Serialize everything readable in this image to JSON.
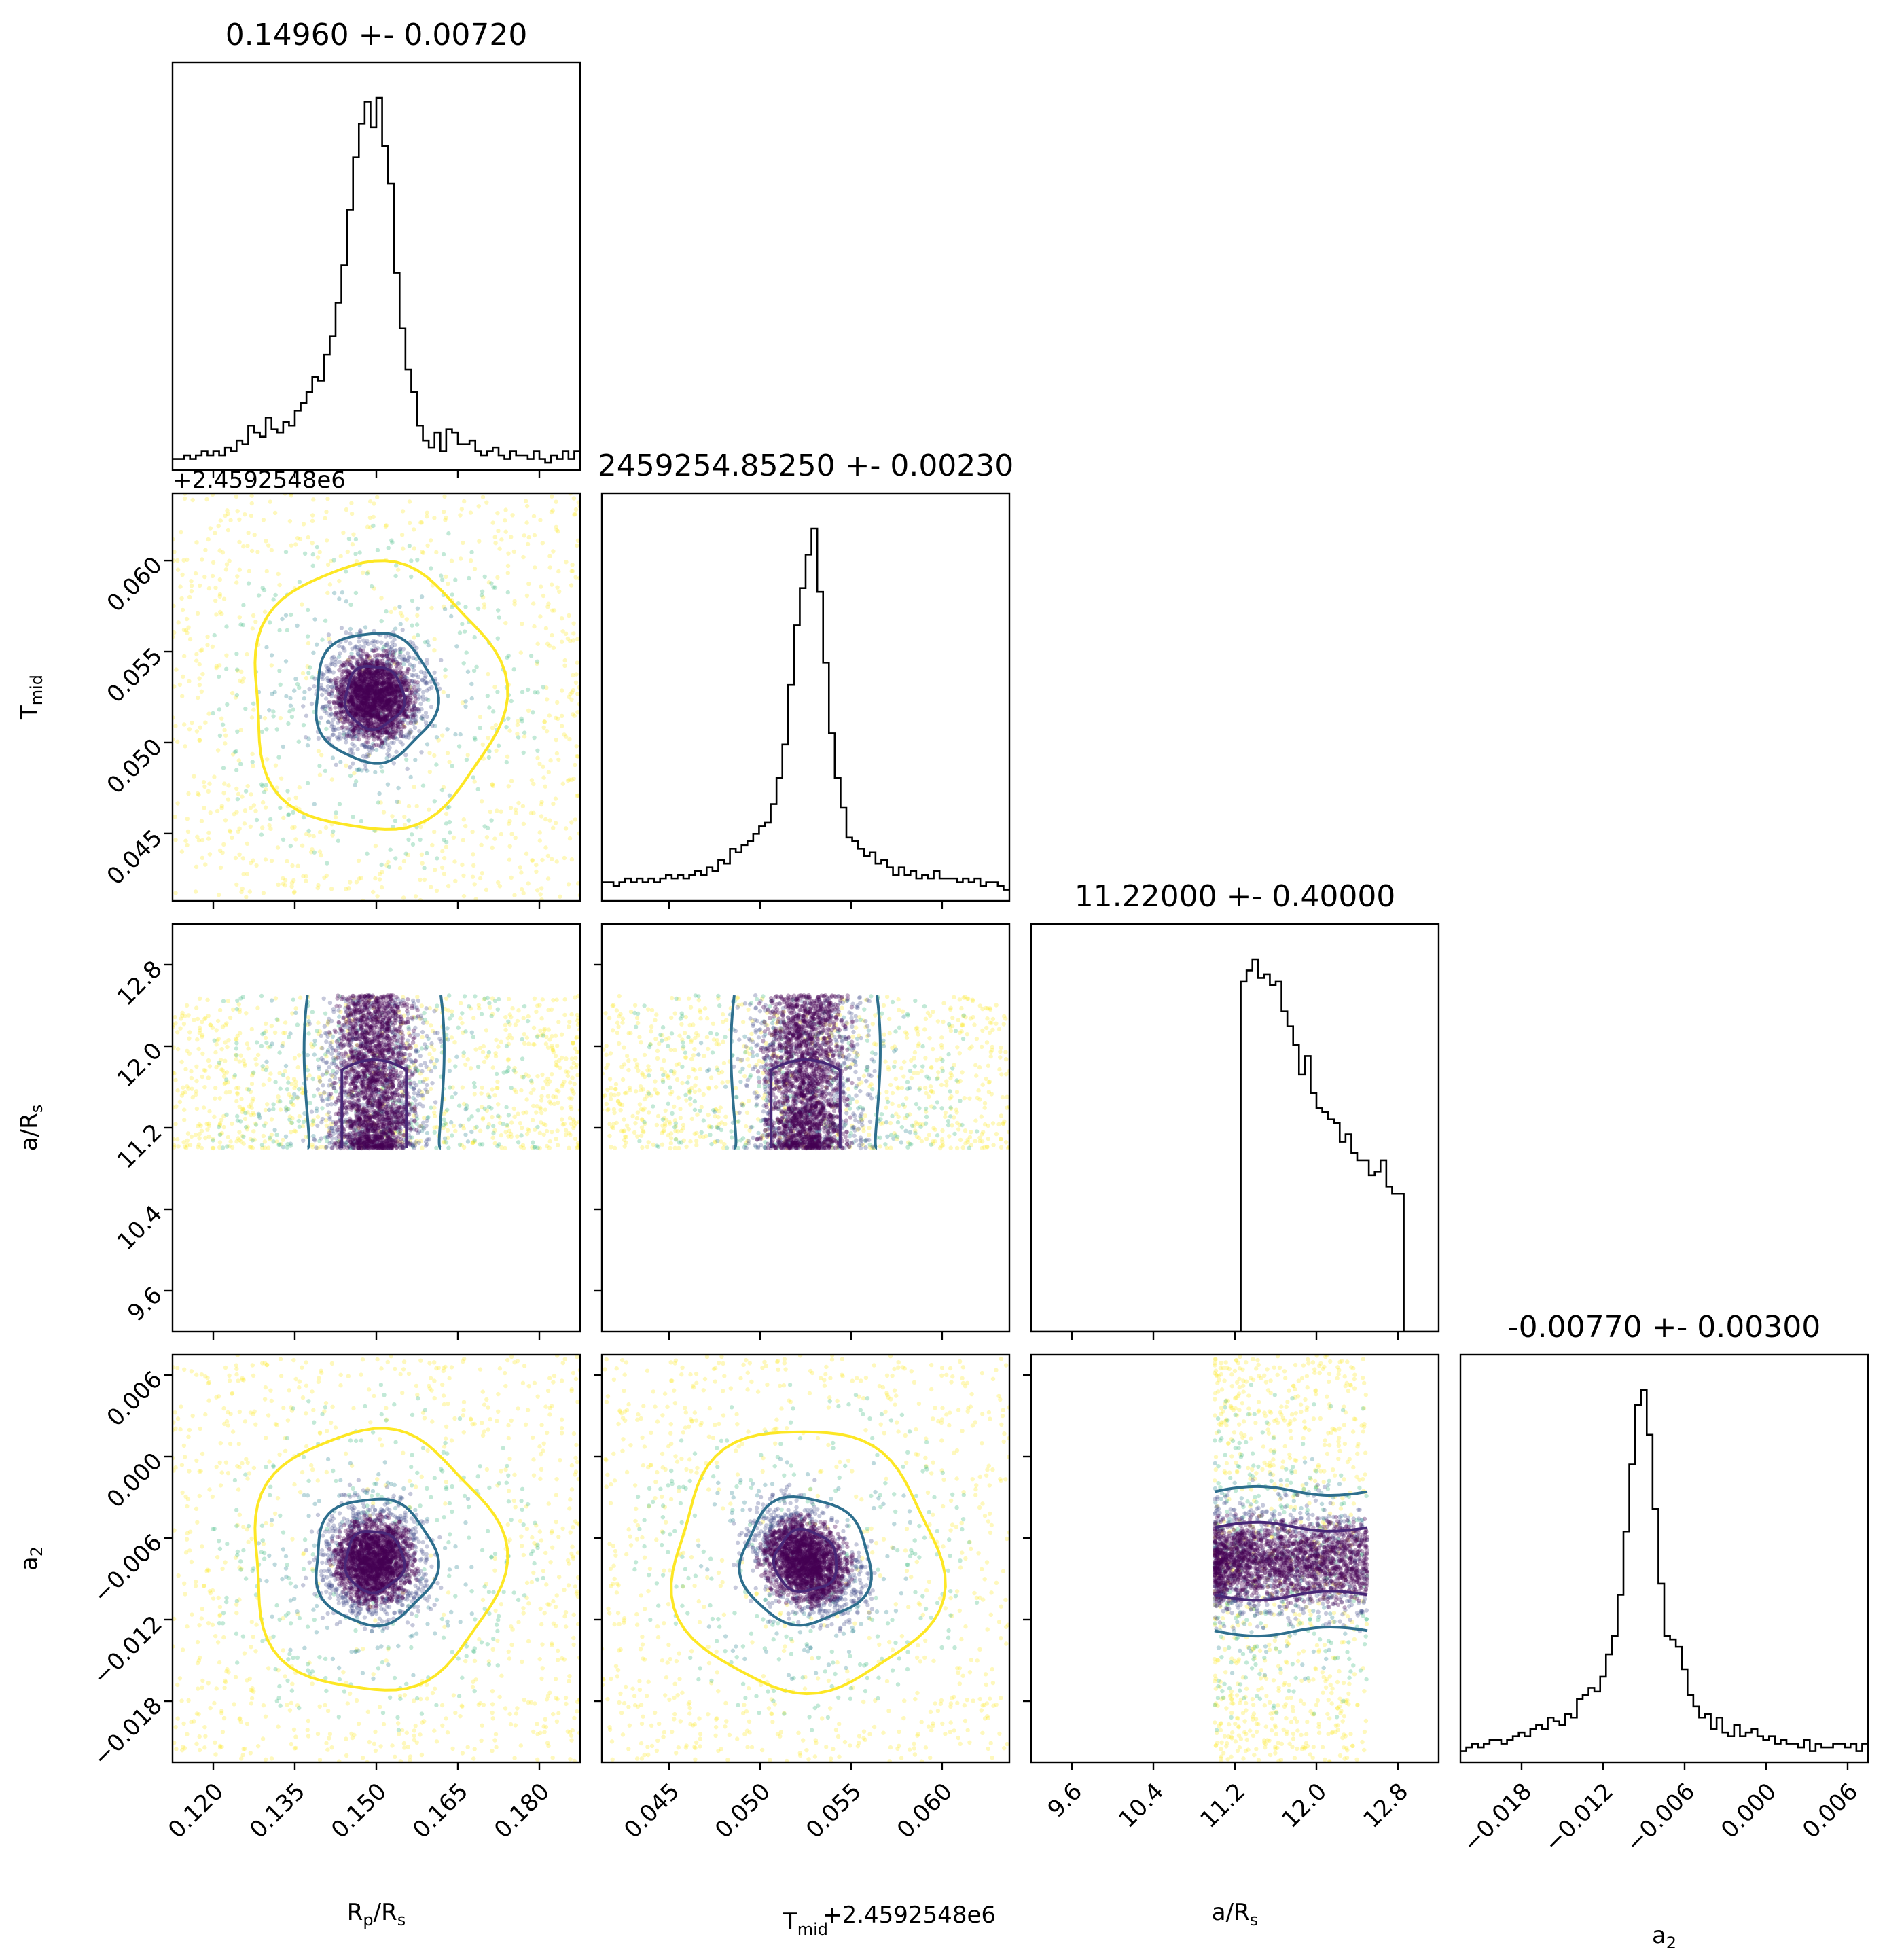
{
  "chart_data": {
    "type": "scatter",
    "layout": "corner-plot",
    "title": "",
    "parameters": [
      {
        "key": "rp",
        "label": "R",
        "label_sub": "p",
        "label_tail": "/R",
        "label_tail_sub": "s",
        "range": [
          0.1125,
          0.1875
        ],
        "ticks": [
          0.12,
          0.135,
          0.15,
          0.165,
          0.18
        ],
        "tick_labels": [
          "0.120",
          "0.135",
          "0.150",
          "0.165",
          "0.180"
        ],
        "mean": 0.1496,
        "std": 0.0072,
        "title": "0.14960 +- 0.00720",
        "offset": ""
      },
      {
        "key": "tmid",
        "label": "T",
        "label_sub": "mid",
        "label_tail": "",
        "label_tail_sub": "",
        "range": [
          0.0413,
          0.0637
        ],
        "ticks": [
          0.045,
          0.05,
          0.055,
          0.06
        ],
        "tick_labels": [
          "0.045",
          "0.050",
          "0.055",
          "0.060"
        ],
        "mean": 0.0525,
        "std": 0.0023,
        "title": "2459254.85250 +- 0.00230",
        "offset": "+2.4592548e6"
      },
      {
        "key": "ars",
        "label": "a/R",
        "label_sub": "s",
        "label_tail": "",
        "label_tail_sub": "",
        "range": [
          9.2,
          13.2
        ],
        "ticks": [
          9.6,
          10.4,
          11.2,
          12.0,
          12.8
        ],
        "tick_labels": [
          "9.6",
          "10.4",
          "11.2",
          "12.0",
          "12.8"
        ],
        "mean": 11.22,
        "std": 0.4,
        "title": "11.22000 +- 0.40000",
        "offset": "",
        "bounds": [
          11.0,
          12.5
        ]
      },
      {
        "key": "a2",
        "label": "a",
        "label_sub": "2",
        "label_tail": "",
        "label_tail_sub": "",
        "range": [
          -0.0225,
          0.0075
        ],
        "ticks": [
          -0.018,
          -0.012,
          -0.006,
          0.0,
          0.006
        ],
        "tick_labels": [
          "−0.018",
          "−0.012",
          "−0.006",
          "0.000",
          "0.006"
        ],
        "mean": -0.0077,
        "std": 0.003,
        "title": "-0.00770 +- 0.00300",
        "offset": ""
      }
    ],
    "histograms": {
      "rp": [
        0.03,
        0.03,
        0.04,
        0.03,
        0.04,
        0.05,
        0.04,
        0.05,
        0.04,
        0.06,
        0.05,
        0.08,
        0.07,
        0.12,
        0.1,
        0.09,
        0.14,
        0.11,
        0.1,
        0.13,
        0.12,
        0.16,
        0.18,
        0.21,
        0.25,
        0.24,
        0.31,
        0.36,
        0.45,
        0.55,
        0.7,
        0.84,
        0.93,
        0.99,
        0.92,
        1.0,
        0.87,
        0.77,
        0.53,
        0.38,
        0.27,
        0.21,
        0.12,
        0.08,
        0.06,
        0.1,
        0.05,
        0.11,
        0.1,
        0.07,
        0.07,
        0.08,
        0.05,
        0.04,
        0.05,
        0.06,
        0.04,
        0.03,
        0.05,
        0.04,
        0.04,
        0.03,
        0.05,
        0.03,
        0.02,
        0.04,
        0.03,
        0.05,
        0.03,
        0.05
      ],
      "tmid": [
        0.05,
        0.05,
        0.04,
        0.05,
        0.06,
        0.05,
        0.06,
        0.05,
        0.06,
        0.05,
        0.06,
        0.07,
        0.06,
        0.07,
        0.06,
        0.07,
        0.08,
        0.07,
        0.09,
        0.08,
        0.11,
        0.1,
        0.14,
        0.13,
        0.15,
        0.16,
        0.18,
        0.2,
        0.21,
        0.26,
        0.33,
        0.42,
        0.58,
        0.74,
        0.84,
        0.93,
        1.0,
        0.83,
        0.64,
        0.45,
        0.33,
        0.25,
        0.17,
        0.16,
        0.14,
        0.12,
        0.13,
        0.1,
        0.11,
        0.09,
        0.07,
        0.09,
        0.07,
        0.08,
        0.06,
        0.07,
        0.06,
        0.08,
        0.06,
        0.06,
        0.06,
        0.05,
        0.06,
        0.05,
        0.06,
        0.04,
        0.05,
        0.05,
        0.04,
        0.03
      ],
      "ars": [
        0.0,
        0.0,
        0.0,
        0.0,
        0.0,
        0.0,
        0.0,
        0.0,
        0.0,
        0.0,
        0.0,
        0.0,
        0.0,
        0.0,
        0.0,
        0.0,
        0.0,
        0.0,
        0.0,
        0.0,
        0.0,
        0.0,
        0.0,
        0.0,
        0.0,
        0.0,
        0.0,
        0.0,
        0.0,
        0.0,
        0.0,
        0.0,
        0.0,
        0.0,
        0.0,
        0.0,
        0.94,
        0.97,
        1.0,
        0.95,
        0.96,
        0.93,
        0.94,
        0.86,
        0.82,
        0.77,
        0.69,
        0.74,
        0.64,
        0.6,
        0.59,
        0.57,
        0.56,
        0.51,
        0.53,
        0.48,
        0.46,
        0.46,
        0.42,
        0.43,
        0.46,
        0.39,
        0.37,
        0.37,
        0.0,
        0.0,
        0.0,
        0.0,
        0.0,
        0.0
      ],
      "a2": [
        0.03,
        0.04,
        0.05,
        0.04,
        0.05,
        0.06,
        0.06,
        0.05,
        0.06,
        0.07,
        0.08,
        0.07,
        0.09,
        0.1,
        0.09,
        0.12,
        0.11,
        0.1,
        0.13,
        0.12,
        0.17,
        0.18,
        0.2,
        0.19,
        0.23,
        0.29,
        0.34,
        0.45,
        0.62,
        0.8,
        0.96,
        1.0,
        0.88,
        0.68,
        0.48,
        0.34,
        0.33,
        0.31,
        0.25,
        0.18,
        0.15,
        0.12,
        0.13,
        0.09,
        0.12,
        0.08,
        0.07,
        0.1,
        0.07,
        0.08,
        0.09,
        0.07,
        0.06,
        0.07,
        0.05,
        0.06,
        0.05,
        0.05,
        0.04,
        0.06,
        0.03,
        0.05,
        0.04,
        0.04,
        0.05,
        0.05,
        0.04,
        0.05,
        0.03,
        0.05
      ]
    },
    "scatter_colors": [
      "#440154",
      "#3e4a89",
      "#26828e",
      "#35b779",
      "#fde725"
    ],
    "contour_colors": [
      "#482777",
      "#2e6f8e",
      "#fde725"
    ],
    "hist_color": "#000000",
    "grid": false,
    "legend": "none"
  }
}
